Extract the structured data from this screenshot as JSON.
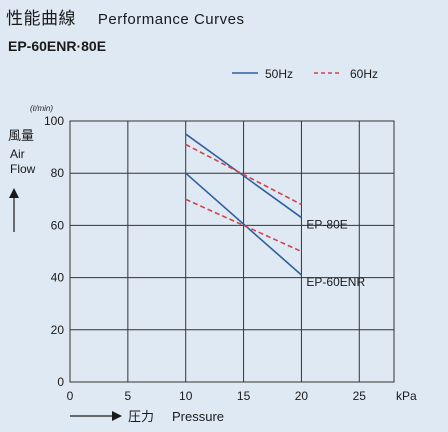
{
  "header": {
    "title_jp": "性能曲線",
    "title_en": "Performance Curves",
    "model": "EP-60ENR·80E"
  },
  "chart_data": {
    "type": "line",
    "x_ticks": [
      "0",
      "5",
      "10",
      "15",
      "20",
      "25"
    ],
    "x_unit": "kPa",
    "xlabel_jp": "圧力",
    "xlabel_en": "Pressure",
    "xlim": [
      0,
      28
    ],
    "y_ticks": [
      "0",
      "20",
      "40",
      "60",
      "80",
      "100"
    ],
    "y_unit": "(ℓ/min)",
    "ylabel_jp": "風量",
    "ylabel_en_1": "Air",
    "ylabel_en_2": "Flow",
    "ylim": [
      0,
      100
    ],
    "grid": true,
    "legend": {
      "position": "top-right",
      "items": [
        {
          "label": "50Hz",
          "color": "#2f5f9e",
          "dash": "solid"
        },
        {
          "label": "60Hz",
          "color": "#d0454c",
          "dash": "dashed"
        }
      ]
    },
    "series": [
      {
        "model": "EP-80E",
        "freq": "50Hz",
        "x": [
          10,
          20
        ],
        "y": [
          95,
          63
        ],
        "color": "#2f5f9e",
        "dash": "solid"
      },
      {
        "model": "EP-80E",
        "freq": "60Hz",
        "x": [
          10,
          20
        ],
        "y": [
          91,
          68
        ],
        "color": "#d0454c",
        "dash": "dashed"
      },
      {
        "model": "EP-60ENR",
        "freq": "50Hz",
        "x": [
          10,
          20
        ],
        "y": [
          80,
          41
        ],
        "color": "#2f5f9e",
        "dash": "solid"
      },
      {
        "model": "EP-60ENR",
        "freq": "60Hz",
        "x": [
          10,
          20
        ],
        "y": [
          70,
          50
        ],
        "color": "#d0454c",
        "dash": "dashed"
      }
    ],
    "annotations": [
      {
        "text": "EP-80E",
        "x": 20,
        "y": 63
      },
      {
        "text": "EP-60ENR",
        "x": 20,
        "y": 41
      }
    ]
  }
}
